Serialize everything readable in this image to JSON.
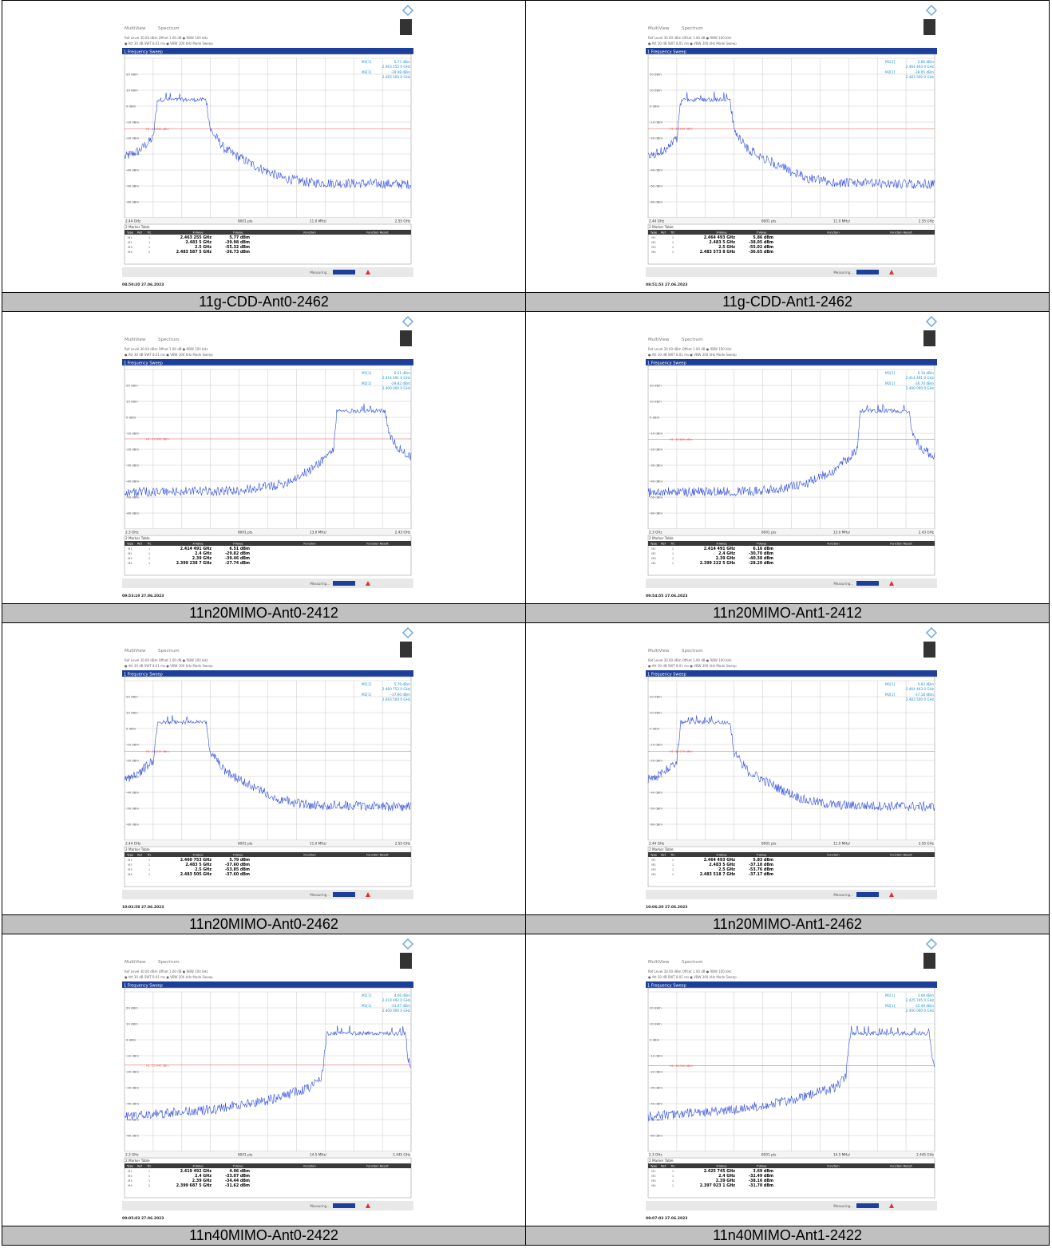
{
  "screen": {
    "tab1": "MultiView",
    "tab2": "Spectrum",
    "settings1": "Ref Level 30.00 dBm   Offset 1.00 dB ● RBW 100 kHz",
    "settings2": "● Att        30 dB   SWT  8.01 ms ● VBW 300 kHz   Mode Sweep",
    "sweep": "1 Frequency Sweep",
    "view": "1Pk View",
    "ylabels": [
      "20 dBm",
      "10 dBm",
      "0 dBm",
      "-10 dBm",
      "-20 dBm",
      "-30 dBm",
      "-40 dBm",
      "-50 dBm",
      "-60 dBm"
    ],
    "points": "8001 pts",
    "table_title": "2 Marker Table",
    "columns": [
      "Type",
      "Ref",
      "Trc",
      "X-Value",
      "Y-Value",
      "Function",
      "Function Result"
    ],
    "status": "Measuring..."
  },
  "panels": [
    {
      "caption": "11g-CDD-Ant0-2462",
      "x_start": "2.44 GHz",
      "span": "11.0 MHz/",
      "x_stop": "2.55 GHz",
      "display_line": "H1 -14.230 dBm",
      "readout": [
        {
          "label": "M1[1]",
          "value": "5.77 dBm",
          "x": "2.463 255 0 GHz"
        },
        {
          "label": "M2[1]",
          "value": "-39.98 dBm",
          "x": "2.483 500 0 GHz"
        }
      ],
      "rows": [
        [
          "M1",
          "1",
          "2.463 255 GHz",
          "5.77 dBm"
        ],
        [
          "M2",
          "1",
          "2.483 5 GHz",
          "-39.98 dBm"
        ],
        [
          "M3",
          "1",
          "2.5 GHz",
          "-55.32 dBm"
        ],
        [
          "M4",
          "1",
          "2.483 587 5 GHz",
          "-36.73 dBm"
        ]
      ],
      "timestamp": "08:50:20  27.06.2023"
    },
    {
      "caption": "11g-CDD-Ant1-2462",
      "x_start": "2.44 GHz",
      "span": "11.0 MHz/",
      "x_stop": "2.55 GHz",
      "display_line": "H1 -14.140 dBm",
      "readout": [
        {
          "label": "M1[1]",
          "value": "5.86 dBm",
          "x": "2.464 493 0 GHz"
        },
        {
          "label": "M2[1]",
          "value": "-38.05 dBm",
          "x": "2.483 500 0 GHz"
        }
      ],
      "rows": [
        [
          "M1",
          "1",
          "2.464 493 GHz",
          "5.86 dBm"
        ],
        [
          "M2",
          "1",
          "2.483 5 GHz",
          "-38.05 dBm"
        ],
        [
          "M3",
          "1",
          "2.5 GHz",
          "-55.02 dBm"
        ],
        [
          "M4",
          "1",
          "2.483 573 8 GHz",
          "-36.65 dBm"
        ]
      ],
      "timestamp": "08:51:53  27.06.2023"
    },
    {
      "caption": "11n20MIMO-Ant0-2412",
      "x_start": "2.3 GHz",
      "span": "13.0 MHz/",
      "x_stop": "2.43 GHz",
      "display_line": "H1 -13.490 dBm",
      "readout": [
        {
          "label": "M1[1]",
          "value": "6.51 dBm",
          "x": "2.414 491 0 GHz"
        },
        {
          "label": "M2[1]",
          "value": "-29.82 dBm",
          "x": "2.400 000 0 GHz"
        }
      ],
      "rows": [
        [
          "M1",
          "1",
          "2.414 491 GHz",
          "6.51 dBm"
        ],
        [
          "M2",
          "1",
          "2.4 GHz",
          "-29.82 dBm"
        ],
        [
          "M3",
          "1",
          "2.39 GHz",
          "-39.46 dBm"
        ],
        [
          "M4",
          "1",
          "2.399 238 7 GHz",
          "-27.74 dBm"
        ]
      ],
      "timestamp": "09:53:19  27.06.2023"
    },
    {
      "caption": "11n20MIMO-Ant1-2412",
      "x_start": "2.3 GHz",
      "span": "13.0 MHz/",
      "x_stop": "2.43 GHz",
      "display_line": "H1 -13.840 dBm",
      "readout": [
        {
          "label": "M1[1]",
          "value": "6.16 dBm",
          "x": "2.414 491 0 GHz"
        },
        {
          "label": "M2[1]",
          "value": "-30.70 dBm",
          "x": "2.400 000 0 GHz"
        }
      ],
      "rows": [
        [
          "M1",
          "1",
          "2.414 491 GHz",
          "6.16 dBm"
        ],
        [
          "M2",
          "1",
          "2.4 GHz",
          "-30.70 dBm"
        ],
        [
          "M3",
          "1",
          "2.39 GHz",
          "-40.38 dBm"
        ],
        [
          "M4",
          "1",
          "2.399 222 5 GHz",
          "-28.20 dBm"
        ]
      ],
      "timestamp": "09:54:55  27.06.2023"
    },
    {
      "caption": "11n20MIMO-Ant0-2462",
      "x_start": "2.44 GHz",
      "span": "11.0 MHz/",
      "x_stop": "2.55 GHz",
      "display_line": "H1 -14.210 dBm",
      "readout": [
        {
          "label": "M1[1]",
          "value": "5.79 dBm",
          "x": "2.460 753 0 GHz"
        },
        {
          "label": "M2[1]",
          "value": "-37.60 dBm",
          "x": "2.483 500 0 GHz"
        }
      ],
      "rows": [
        [
          "M1",
          "1",
          "2.460 753 GHz",
          "5.79 dBm"
        ],
        [
          "M2",
          "1",
          "2.483 5 GHz",
          "-37.60 dBm"
        ],
        [
          "M3",
          "1",
          "2.5 GHz",
          "-53.85 dBm"
        ],
        [
          "M4",
          "1",
          "2.483 505 GHz",
          "-37.60 dBm"
        ]
      ],
      "timestamp": "10:02:58  27.06.2023"
    },
    {
      "caption": "11n20MIMO-Ant1-2462",
      "x_start": "2.44 GHz",
      "span": "11.0 MHz/",
      "x_stop": "2.55 GHz",
      "display_line": "H1 -14.170 dBm",
      "readout": [
        {
          "label": "M1[1]",
          "value": "5.83 dBm",
          "x": "2.464 493 0 GHz"
        },
        {
          "label": "M2[1]",
          "value": "-37.18 dBm",
          "x": "2.483 500 0 GHz"
        }
      ],
      "rows": [
        [
          "M1",
          "1",
          "2.464 493 GHz",
          "5.83 dBm"
        ],
        [
          "M2",
          "1",
          "2.483 5 GHz",
          "-37.18 dBm"
        ],
        [
          "M3",
          "1",
          "2.5 GHz",
          "-53.76 dBm"
        ],
        [
          "M4",
          "1",
          "2.483 518 7 GHz",
          "-37.17 dBm"
        ]
      ],
      "timestamp": "10:06:20  27.06.2023"
    },
    {
      "caption": "11n40MIMO-Ant0-2422",
      "x_start": "2.3 GHz",
      "span": "14.5 MHz/",
      "x_stop": "2.445 GHz",
      "display_line": "H1 -15.940 dBm",
      "readout": [
        {
          "label": "M1[1]",
          "value": "4.06 dBm",
          "x": "2.419 492 0 GHz"
        },
        {
          "label": "M2[1]",
          "value": "-33.07 dBm",
          "x": "2.400 000 0 GHz"
        }
      ],
      "rows": [
        [
          "M1",
          "1",
          "2.419 492 GHz",
          "4.06 dBm"
        ],
        [
          "M2",
          "1",
          "2.4 GHz",
          "-33.07 dBm"
        ],
        [
          "M3",
          "1",
          "2.39 GHz",
          "-34.44 dBm"
        ],
        [
          "M4",
          "1",
          "2.399 687 5 GHz",
          "-31.62 dBm"
        ]
      ],
      "timestamp": "09:05:03  27.06.2023"
    },
    {
      "caption": "11n40MIMO-Ant1-2422",
      "x_start": "2.3 GHz",
      "span": "14.5 MHz/",
      "x_stop": "2.445 GHz",
      "display_line": "H1 -16.310 dBm",
      "readout": [
        {
          "label": "M1[1]",
          "value": "3.69 dBm",
          "x": "2.425 745 0 GHz"
        },
        {
          "label": "M2[1]",
          "value": "-32.49 dBm",
          "x": "2.400 000 0 GHz"
        }
      ],
      "rows": [
        [
          "M1",
          "1",
          "2.425 745 GHz",
          "3.69 dBm"
        ],
        [
          "M2",
          "1",
          "2.4 GHz",
          "-32.49 dBm"
        ],
        [
          "M3",
          "1",
          "2.39 GHz",
          "-38.16 dBm"
        ],
        [
          "M4",
          "1",
          "2.397 023 1 GHz",
          "-31.70 dBm"
        ]
      ],
      "timestamp": "09:07:03  27.06.2023"
    }
  ]
}
